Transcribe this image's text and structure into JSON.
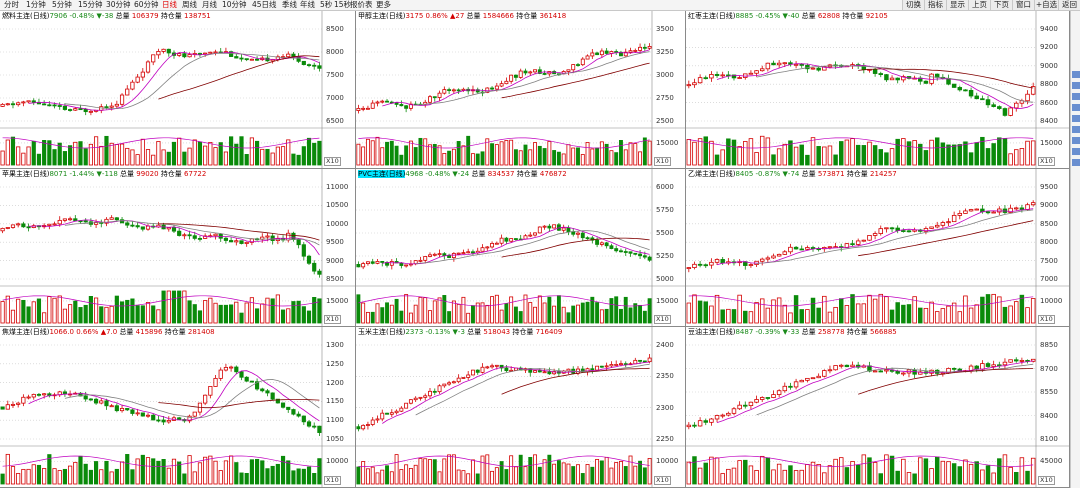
{
  "toolbar": {
    "periods": [
      "分时",
      "1分钟",
      "5分钟",
      "15分钟",
      "30分钟",
      "60分钟",
      "日线",
      "周线",
      "月线",
      "10分钟",
      "45日线",
      "季线",
      "年线",
      "5秒",
      "15秒",
      "报价表",
      "更多"
    ],
    "active_index": 6,
    "right_buttons": [
      "切换",
      "指标",
      "显示",
      "上页",
      "下页",
      "窗口",
      "+自选",
      "返回"
    ]
  },
  "colors": {
    "up": "#d40000",
    "down": "#0a8a0a",
    "ma_fast": "#c000c0",
    "ma_mid": "#808080",
    "ma_slow": "#800000",
    "vol_ma": "#c000c0"
  },
  "panels": [
    {
      "name": "燃料主连(日线)",
      "price": "7906",
      "change_pct": "-0.48%",
      "change": "▼-38",
      "vol_label": "总量",
      "volume": "106379",
      "oi_label": "持仓量",
      "oi": "138751",
      "dir": "down",
      "highlight": false,
      "y_labels": [
        "8500",
        "8000",
        "7500",
        "7000",
        "6500"
      ],
      "vol_label_axis": "",
      "seed": 11,
      "shape": "breakout_flat",
      "vol_spike": 0
    },
    {
      "name": "甲醇主连(日线)",
      "price": "3175",
      "change_pct": "0.86%",
      "change": "▲27",
      "vol_label": "总量",
      "volume": "1584666",
      "oi_label": "持仓量",
      "oi": "361418",
      "dir": "up",
      "highlight": false,
      "y_labels": [
        "3500",
        "3250",
        "3000",
        "2750",
        "2500"
      ],
      "vol_label_axis": "15000",
      "seed": 23,
      "shape": "rise",
      "vol_spike": 0
    },
    {
      "name": "红枣主连(日线)",
      "price": "8885",
      "change_pct": "-0.45%",
      "change": "▼-40",
      "vol_label": "总量",
      "volume": "62808",
      "oi_label": "持仓量",
      "oi": "92105",
      "dir": "down",
      "highlight": false,
      "y_labels": [
        "9400",
        "9200",
        "9000",
        "8800",
        "8600",
        "8400"
      ],
      "vol_label_axis": "15000",
      "seed": 37,
      "shape": "hump_dip",
      "vol_spike": 0
    },
    {
      "name": "苹果主连(日线)",
      "price": "8071",
      "change_pct": "-1.44%",
      "change": "▼-118",
      "vol_label": "总量",
      "volume": "99020",
      "oi_label": "持仓量",
      "oi": "67722",
      "dir": "down",
      "highlight": false,
      "y_labels": [
        "11000",
        "10500",
        "10000",
        "9500",
        "9000",
        "8500"
      ],
      "vol_label_axis": "15000",
      "seed": 41,
      "shape": "flat_crash",
      "vol_spike": 1
    },
    {
      "name": "PVC主连(日线)",
      "price": "4968",
      "change_pct": "-0.48%",
      "change": "▼-24",
      "vol_label": "总量",
      "volume": "834537",
      "oi_label": "持仓量",
      "oi": "476872",
      "dir": "down",
      "highlight": true,
      "y_labels": [
        "6000",
        "5750",
        "5500",
        "5250",
        "5000"
      ],
      "vol_label_axis": "15000",
      "seed": 53,
      "shape": "rise_fall",
      "vol_spike": 0
    },
    {
      "name": "乙烯主连(日线)",
      "price": "8405",
      "change_pct": "-0.87%",
      "change": "▼-74",
      "vol_label": "总量",
      "volume": "573871",
      "oi_label": "持仓量",
      "oi": "214257",
      "dir": "down",
      "highlight": false,
      "y_labels": [
        "9500",
        "9000",
        "8500",
        "8000",
        "7500",
        "7000"
      ],
      "vol_label_axis": "10000",
      "seed": 61,
      "shape": "rise",
      "vol_spike": 0
    },
    {
      "name": "焦煤主连(日线)",
      "price": "1066.0",
      "change_pct": "0.66%",
      "change": "▲7.0",
      "vol_label": "总量",
      "volume": "415896",
      "oi_label": "持仓量",
      "oi": "281408",
      "dir": "up",
      "highlight": false,
      "y_labels": [
        "1300",
        "1250",
        "1200",
        "1150",
        "1100",
        "1050"
      ],
      "vol_label_axis": "10000",
      "seed": 71,
      "shape": "spike_fall",
      "vol_spike": 0
    },
    {
      "name": "玉米主连(日线)",
      "price": "2373",
      "change_pct": "-0.13%",
      "change": "▼-3",
      "vol_label": "总量",
      "volume": "518043",
      "oi_label": "持仓量",
      "oi": "716409",
      "dir": "down",
      "highlight": false,
      "y_labels": [
        "2400",
        "2350",
        "2300",
        "2250"
      ],
      "vol_label_axis": "10000",
      "seed": 83,
      "shape": "rise_plateau",
      "vol_spike": 0
    },
    {
      "name": "豆油主连(日线)",
      "price": "8487",
      "change_pct": "-0.39%",
      "change": "▼-33",
      "vol_label": "总量",
      "volume": "258778",
      "oi_label": "持仓量",
      "oi": "566885",
      "dir": "down",
      "highlight": false,
      "y_labels": [
        "8850",
        "8700",
        "8550",
        "8400",
        "8100"
      ],
      "vol_label_axis": "45000",
      "seed": 97,
      "shape": "rise_plateau",
      "vol_spike": 0
    }
  ],
  "x10_label": "X10"
}
